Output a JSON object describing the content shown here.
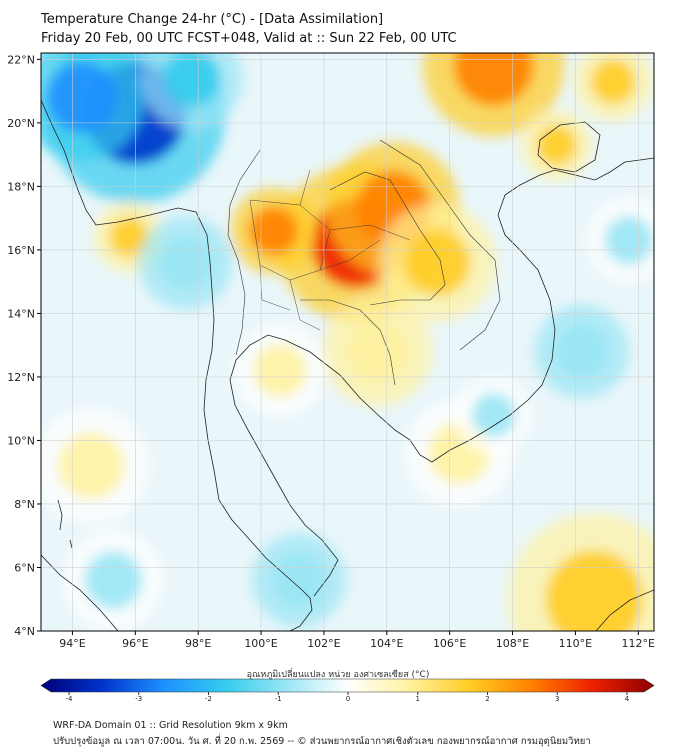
{
  "title": {
    "line1": "Temperature Change 24-hr (°C) - [Data Assimilation]",
    "line2": "Friday 20 Feb, 00 UTC FCST+048, Valid at :: Sun 22 Feb, 00 UTC"
  },
  "map": {
    "lon_range": [
      93,
      112.5
    ],
    "lat_range": [
      4,
      22.2
    ],
    "x_ticks": [
      "94°E",
      "96°E",
      "98°E",
      "100°E",
      "102°E",
      "104°E",
      "106°E",
      "108°E",
      "110°E",
      "112°E"
    ],
    "x_tick_values": [
      94,
      96,
      98,
      100,
      102,
      104,
      106,
      108,
      110,
      112
    ],
    "y_ticks": [
      "22°N",
      "20°N",
      "18°N",
      "16°N",
      "14°N",
      "12°N",
      "10°N",
      "8°N",
      "6°N",
      "4°N"
    ],
    "y_tick_values": [
      22,
      20,
      18,
      16,
      14,
      12,
      10,
      8,
      6,
      4
    ],
    "gridlines": true,
    "field_blobs": [
      {
        "lon": 96.0,
        "lat": 20.3,
        "value": -3.2,
        "radius": 2.3
      },
      {
        "lon": 94.3,
        "lat": 20.8,
        "value": -2.2,
        "radius": 1.6
      },
      {
        "lon": 97.8,
        "lat": 21.4,
        "value": -1.3,
        "radius": 1.3
      },
      {
        "lon": 103.0,
        "lat": 16.2,
        "value": 3.1,
        "radius": 2.0
      },
      {
        "lon": 104.2,
        "lat": 17.3,
        "value": 2.3,
        "radius": 1.7
      },
      {
        "lon": 100.4,
        "lat": 16.6,
        "value": 2.2,
        "radius": 1.1
      },
      {
        "lon": 105.6,
        "lat": 15.6,
        "value": 1.8,
        "radius": 1.5
      },
      {
        "lon": 107.4,
        "lat": 21.8,
        "value": 2.6,
        "radius": 1.8
      },
      {
        "lon": 109.4,
        "lat": 19.3,
        "value": 1.9,
        "radius": 0.9
      },
      {
        "lon": 111.2,
        "lat": 21.3,
        "value": 1.5,
        "radius": 1.0
      },
      {
        "lon": 95.8,
        "lat": 16.4,
        "value": 1.2,
        "radius": 0.9
      },
      {
        "lon": 103.7,
        "lat": 12.8,
        "value": 1.0,
        "radius": 1.4
      },
      {
        "lon": 106.3,
        "lat": 9.6,
        "value": 0.7,
        "radius": 1.4
      },
      {
        "lon": 110.6,
        "lat": 5.0,
        "value": 1.3,
        "radius": 2.2
      },
      {
        "lon": 100.6,
        "lat": 12.2,
        "value": 0.6,
        "radius": 1.2
      },
      {
        "lon": 94.6,
        "lat": 9.2,
        "value": 0.6,
        "radius": 1.5
      },
      {
        "lon": 101.2,
        "lat": 5.6,
        "value": -1.0,
        "radius": 1.2
      },
      {
        "lon": 97.6,
        "lat": 15.6,
        "value": -0.8,
        "radius": 1.2
      },
      {
        "lon": 95.3,
        "lat": 5.6,
        "value": -0.6,
        "radius": 1.3
      },
      {
        "lon": 110.2,
        "lat": 12.8,
        "value": -0.8,
        "radius": 1.2
      },
      {
        "lon": 107.4,
        "lat": 10.8,
        "value": -0.6,
        "radius": 1.0
      },
      {
        "lon": 111.7,
        "lat": 16.3,
        "value": -0.5,
        "radius": 1.1
      }
    ]
  },
  "colorbar": {
    "title": "อุณหภูมิเปลี่ยนแปลง หน่วย องศาเซลเซียส (°C)",
    "range": [
      -4,
      4
    ],
    "ticks": [
      "-4",
      "-3",
      "-2",
      "-1",
      "0",
      "1",
      "2",
      "3",
      "4"
    ],
    "tick_values": [
      -4,
      -3,
      -2,
      -1,
      0,
      1,
      2,
      3,
      4
    ],
    "colors": [
      "#00007a",
      "#0033cc",
      "#1e90ff",
      "#33ccee",
      "#99e6f5",
      "#ffffff",
      "#fff2a0",
      "#ffcc22",
      "#ff8000",
      "#ee2000",
      "#8b0000"
    ]
  },
  "footer": {
    "line1": "WRF-DA Domain 01 :: Grid Resolution 9km x 9km",
    "line2": "ปรับปรุงข้อมูล ณ เวลา 07:00น. วัน ศ. ที่ 20 ก.พ. 2569 -- © ส่วนพยากรณ์อากาศเชิงตัวเลข กองพยากรณ์อากาศ กรมอุตุนิยมวิทยา"
  }
}
